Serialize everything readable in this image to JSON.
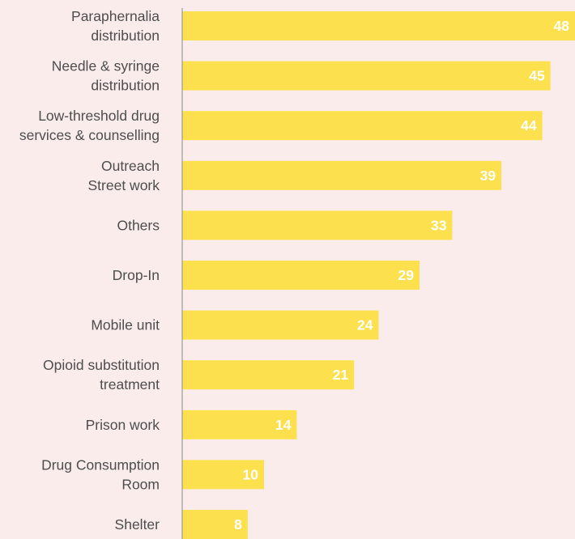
{
  "chart_data": {
    "type": "bar",
    "orientation": "horizontal",
    "categories": [
      [
        "Paraphernalia",
        "distribution"
      ],
      [
        "Needle & syringe",
        "distribution"
      ],
      [
        "Low-threshold drug",
        "services & counselling"
      ],
      [
        "Outreach",
        "Street work"
      ],
      [
        "Others"
      ],
      [
        "Drop-In"
      ],
      [
        "Mobile unit"
      ],
      [
        "Opioid substitution",
        "treatment"
      ],
      [
        "Prison work"
      ],
      [
        "Drug Consumption",
        "Room"
      ],
      [
        "Shelter"
      ]
    ],
    "values": [
      48,
      45,
      44,
      39,
      33,
      29,
      24,
      21,
      14,
      10,
      8
    ],
    "xlim": [
      0,
      48
    ],
    "grid": false,
    "legend": "none",
    "data_labels": "inside-end",
    "colors": {
      "bar": "#fde04d",
      "background": "#fbecec",
      "axis": "#8a8a8a",
      "label_text": "#4d4d4d",
      "value_text": "#ffffff"
    }
  }
}
